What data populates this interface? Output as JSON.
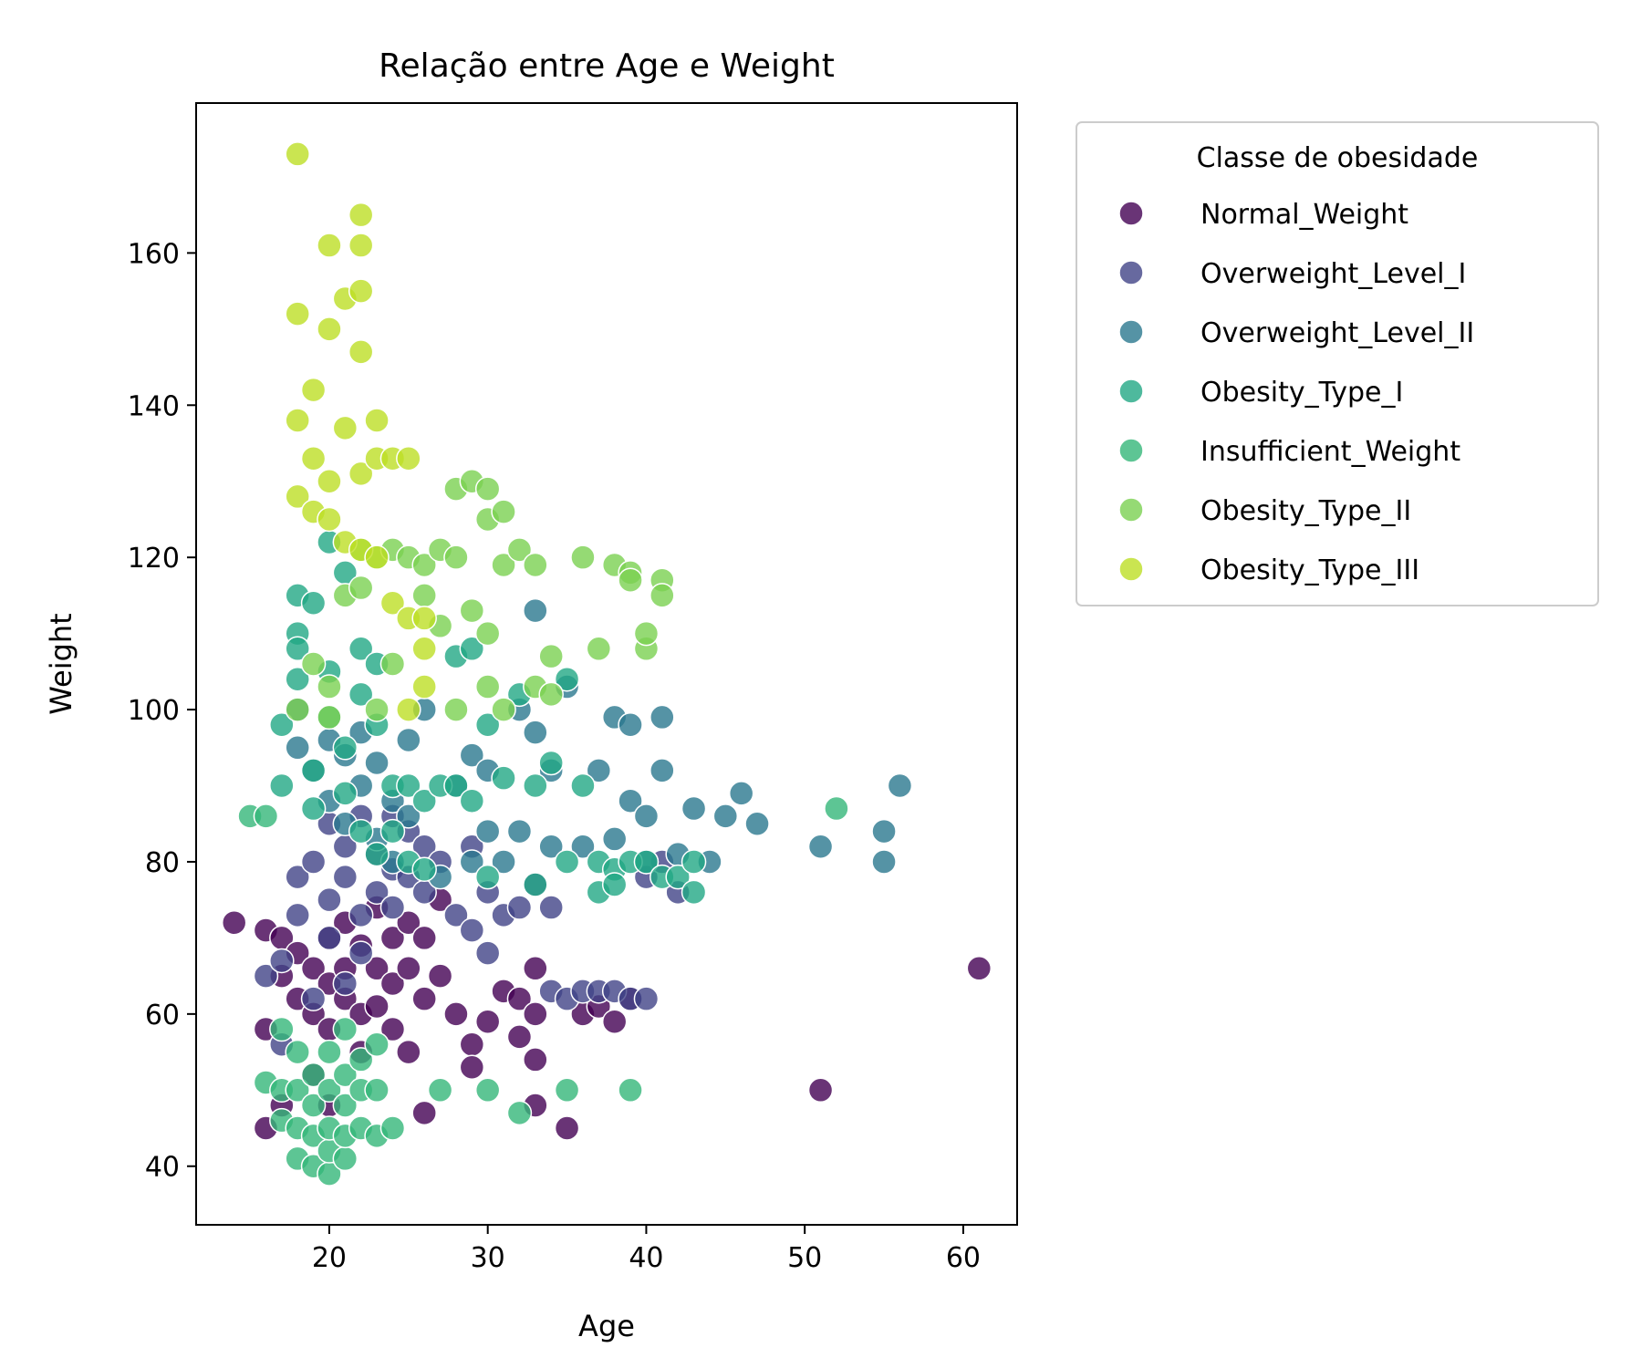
{
  "chart_data": {
    "type": "scatter",
    "title": "Relação entre Age e Weight",
    "xlabel": "Age",
    "ylabel": "Weight",
    "xlim": [
      11.6,
      63.4
    ],
    "ylim": [
      32.3,
      179.7
    ],
    "xticks": [
      20,
      30,
      40,
      50,
      60
    ],
    "yticks": [
      40,
      60,
      80,
      100,
      120,
      140,
      160
    ],
    "grid": false,
    "legend": {
      "title": "Classe de obesidade",
      "position": "upper-right outside"
    },
    "series": [
      {
        "name": "Normal_Weight",
        "color": "#440154",
        "points": [
          [
            14,
            72
          ],
          [
            16,
            71
          ],
          [
            16,
            58
          ],
          [
            16,
            45
          ],
          [
            17,
            65
          ],
          [
            17,
            70
          ],
          [
            17,
            48
          ],
          [
            18,
            62
          ],
          [
            18,
            68
          ],
          [
            19,
            60
          ],
          [
            19,
            52
          ],
          [
            19,
            66
          ],
          [
            20,
            64
          ],
          [
            20,
            70
          ],
          [
            20,
            58
          ],
          [
            20,
            48
          ],
          [
            21,
            66
          ],
          [
            21,
            72
          ],
          [
            21,
            62
          ],
          [
            22,
            60
          ],
          [
            22,
            69
          ],
          [
            22,
            55
          ],
          [
            23,
            74
          ],
          [
            23,
            66
          ],
          [
            23,
            61
          ],
          [
            24,
            58
          ],
          [
            24,
            70
          ],
          [
            24,
            64
          ],
          [
            25,
            72
          ],
          [
            25,
            66
          ],
          [
            25,
            55
          ],
          [
            26,
            62
          ],
          [
            26,
            70
          ],
          [
            26,
            47
          ],
          [
            27,
            65
          ],
          [
            27,
            75
          ],
          [
            28,
            60
          ],
          [
            29,
            56
          ],
          [
            29,
            53
          ],
          [
            30,
            59
          ],
          [
            31,
            63
          ],
          [
            32,
            57
          ],
          [
            32,
            62
          ],
          [
            33,
            60
          ],
          [
            33,
            66
          ],
          [
            33,
            48
          ],
          [
            33,
            54
          ],
          [
            35,
            45
          ],
          [
            36,
            60
          ],
          [
            37,
            61
          ],
          [
            38,
            59
          ],
          [
            39,
            62
          ],
          [
            51,
            50
          ],
          [
            61,
            66
          ]
        ]
      },
      {
        "name": "Overweight_Level_I",
        "color": "#414487",
        "points": [
          [
            16,
            65
          ],
          [
            17,
            67
          ],
          [
            17,
            56
          ],
          [
            18,
            73
          ],
          [
            18,
            78
          ],
          [
            19,
            62
          ],
          [
            19,
            80
          ],
          [
            20,
            75
          ],
          [
            20,
            85
          ],
          [
            20,
            70
          ],
          [
            21,
            78
          ],
          [
            21,
            82
          ],
          [
            21,
            64
          ],
          [
            22,
            73
          ],
          [
            22,
            86
          ],
          [
            22,
            68
          ],
          [
            23,
            76
          ],
          [
            23,
            81
          ],
          [
            24,
            74
          ],
          [
            24,
            86
          ],
          [
            24,
            79
          ],
          [
            25,
            78
          ],
          [
            25,
            84
          ],
          [
            26,
            82
          ],
          [
            26,
            76
          ],
          [
            27,
            80
          ],
          [
            28,
            73
          ],
          [
            29,
            71
          ],
          [
            29,
            82
          ],
          [
            30,
            68
          ],
          [
            30,
            76
          ],
          [
            31,
            73
          ],
          [
            32,
            74
          ],
          [
            33,
            77
          ],
          [
            34,
            74
          ],
          [
            34,
            63
          ],
          [
            35,
            62
          ],
          [
            36,
            63
          ],
          [
            37,
            63
          ],
          [
            38,
            63
          ],
          [
            39,
            62
          ],
          [
            40,
            62
          ],
          [
            40,
            78
          ],
          [
            41,
            80
          ],
          [
            42,
            76
          ]
        ]
      },
      {
        "name": "Overweight_Level_II",
        "color": "#2a788e",
        "points": [
          [
            18,
            95
          ],
          [
            18,
            100
          ],
          [
            19,
            92
          ],
          [
            20,
            88
          ],
          [
            20,
            96
          ],
          [
            21,
            94
          ],
          [
            21,
            85
          ],
          [
            22,
            97
          ],
          [
            22,
            90
          ],
          [
            23,
            93
          ],
          [
            23,
            83
          ],
          [
            24,
            88
          ],
          [
            24,
            80
          ],
          [
            25,
            96
          ],
          [
            25,
            86
          ],
          [
            26,
            100
          ],
          [
            27,
            78
          ],
          [
            28,
            90
          ],
          [
            29,
            94
          ],
          [
            29,
            80
          ],
          [
            30,
            92
          ],
          [
            30,
            84
          ],
          [
            31,
            80
          ],
          [
            32,
            84
          ],
          [
            32,
            100
          ],
          [
            33,
            113
          ],
          [
            33,
            97
          ],
          [
            34,
            92
          ],
          [
            34,
            82
          ],
          [
            35,
            103
          ],
          [
            36,
            82
          ],
          [
            37,
            92
          ],
          [
            38,
            99
          ],
          [
            38,
            83
          ],
          [
            39,
            88
          ],
          [
            39,
            98
          ],
          [
            40,
            86
          ],
          [
            40,
            80
          ],
          [
            41,
            92
          ],
          [
            41,
            99
          ],
          [
            42,
            81
          ],
          [
            43,
            87
          ],
          [
            44,
            80
          ],
          [
            45,
            86
          ],
          [
            46,
            89
          ],
          [
            47,
            85
          ],
          [
            51,
            82
          ],
          [
            55,
            84
          ],
          [
            55,
            80
          ],
          [
            56,
            90
          ]
        ]
      },
      {
        "name": "Obesity_Type_I",
        "color": "#22a884",
        "points": [
          [
            17,
            90
          ],
          [
            17,
            98
          ],
          [
            18,
            104
          ],
          [
            18,
            110
          ],
          [
            18,
            115
          ],
          [
            18,
            108
          ],
          [
            19,
            87
          ],
          [
            19,
            114
          ],
          [
            19,
            92
          ],
          [
            20,
            122
          ],
          [
            20,
            99
          ],
          [
            20,
            105
          ],
          [
            21,
            118
          ],
          [
            21,
            95
          ],
          [
            21,
            89
          ],
          [
            22,
            102
          ],
          [
            22,
            108
          ],
          [
            22,
            84
          ],
          [
            23,
            106
          ],
          [
            23,
            98
          ],
          [
            23,
            81
          ],
          [
            24,
            90
          ],
          [
            24,
            84
          ],
          [
            25,
            90
          ],
          [
            25,
            80
          ],
          [
            26,
            88
          ],
          [
            26,
            79
          ],
          [
            27,
            90
          ],
          [
            28,
            107
          ],
          [
            28,
            90
          ],
          [
            29,
            108
          ],
          [
            29,
            88
          ],
          [
            30,
            98
          ],
          [
            30,
            78
          ],
          [
            31,
            91
          ],
          [
            32,
            102
          ],
          [
            33,
            90
          ],
          [
            33,
            77
          ],
          [
            34,
            93
          ],
          [
            35,
            104
          ],
          [
            35,
            80
          ],
          [
            36,
            90
          ],
          [
            37,
            76
          ],
          [
            37,
            80
          ],
          [
            38,
            79
          ],
          [
            38,
            77
          ],
          [
            39,
            80
          ],
          [
            40,
            80
          ],
          [
            41,
            78
          ],
          [
            42,
            78
          ],
          [
            43,
            80
          ],
          [
            43,
            76
          ]
        ]
      },
      {
        "name": "Insufficient_Weight",
        "color": "#35b779",
        "points": [
          [
            15,
            86
          ],
          [
            16,
            86
          ],
          [
            16,
            51
          ],
          [
            17,
            50
          ],
          [
            17,
            46
          ],
          [
            17,
            58
          ],
          [
            18,
            41
          ],
          [
            18,
            45
          ],
          [
            18,
            50
          ],
          [
            18,
            55
          ],
          [
            19,
            40
          ],
          [
            19,
            44
          ],
          [
            19,
            48
          ],
          [
            19,
            52
          ],
          [
            20,
            39
          ],
          [
            20,
            42
          ],
          [
            20,
            45
          ],
          [
            20,
            50
          ],
          [
            20,
            55
          ],
          [
            21,
            41
          ],
          [
            21,
            44
          ],
          [
            21,
            48
          ],
          [
            21,
            52
          ],
          [
            21,
            58
          ],
          [
            22,
            45
          ],
          [
            22,
            50
          ],
          [
            22,
            54
          ],
          [
            23,
            44
          ],
          [
            23,
            50
          ],
          [
            23,
            56
          ],
          [
            24,
            45
          ],
          [
            27,
            50
          ],
          [
            30,
            50
          ],
          [
            32,
            47
          ],
          [
            35,
            50
          ],
          [
            39,
            50
          ],
          [
            52,
            87
          ]
        ]
      },
      {
        "name": "Obesity_Type_II",
        "color": "#7ad151",
        "points": [
          [
            18,
            100
          ],
          [
            19,
            106
          ],
          [
            20,
            99
          ],
          [
            20,
            103
          ],
          [
            21,
            115
          ],
          [
            22,
            116
          ],
          [
            22,
            121
          ],
          [
            23,
            120
          ],
          [
            23,
            100
          ],
          [
            24,
            121
          ],
          [
            24,
            106
          ],
          [
            25,
            120
          ],
          [
            26,
            119
          ],
          [
            26,
            115
          ],
          [
            27,
            121
          ],
          [
            27,
            111
          ],
          [
            28,
            129
          ],
          [
            28,
            120
          ],
          [
            28,
            100
          ],
          [
            29,
            113
          ],
          [
            29,
            130
          ],
          [
            30,
            125
          ],
          [
            30,
            129
          ],
          [
            30,
            110
          ],
          [
            30,
            103
          ],
          [
            31,
            119
          ],
          [
            31,
            126
          ],
          [
            31,
            100
          ],
          [
            32,
            121
          ],
          [
            33,
            119
          ],
          [
            33,
            103
          ],
          [
            34,
            107
          ],
          [
            34,
            102
          ],
          [
            36,
            120
          ],
          [
            37,
            108
          ],
          [
            38,
            119
          ],
          [
            39,
            118
          ],
          [
            39,
            117
          ],
          [
            40,
            108
          ],
          [
            40,
            110
          ],
          [
            41,
            117
          ],
          [
            41,
            115
          ]
        ]
      },
      {
        "name": "Obesity_Type_III",
        "color": "#bddf26",
        "points": [
          [
            18,
            173
          ],
          [
            18,
            152
          ],
          [
            18,
            138
          ],
          [
            18,
            128
          ],
          [
            19,
            133
          ],
          [
            19,
            142
          ],
          [
            19,
            126
          ],
          [
            20,
            161
          ],
          [
            20,
            150
          ],
          [
            20,
            130
          ],
          [
            20,
            125
          ],
          [
            21,
            154
          ],
          [
            21,
            137
          ],
          [
            21,
            122
          ],
          [
            22,
            165
          ],
          [
            22,
            161
          ],
          [
            22,
            155
          ],
          [
            22,
            147
          ],
          [
            22,
            131
          ],
          [
            22,
            121
          ],
          [
            23,
            138
          ],
          [
            23,
            133
          ],
          [
            23,
            120
          ],
          [
            24,
            133
          ],
          [
            24,
            114
          ],
          [
            25,
            133
          ],
          [
            25,
            112
          ],
          [
            25,
            100
          ],
          [
            26,
            112
          ],
          [
            26,
            108
          ],
          [
            26,
            103
          ]
        ]
      }
    ]
  }
}
